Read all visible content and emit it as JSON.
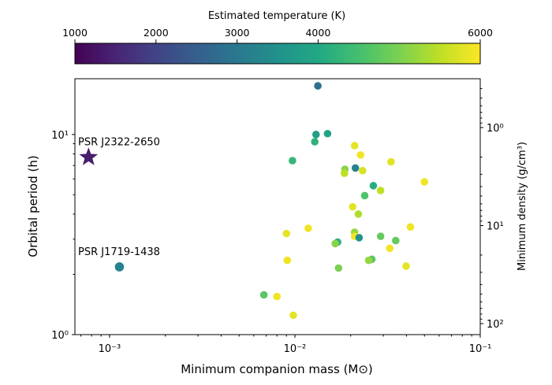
{
  "chart_data": {
    "type": "scatter",
    "xlabel": "Minimum companion mass (M⊙)",
    "ylabel": "Orbital period (h)",
    "y2label": "Minimum density (g/cm³)",
    "x_scale": "log",
    "y_scale": "log",
    "xlim": [
      0.00065,
      0.1
    ],
    "ylim": [
      1,
      19
    ],
    "x_ticks": [
      {
        "value": 0.001,
        "label": "10⁻³"
      },
      {
        "value": 0.01,
        "label": "10⁻²"
      },
      {
        "value": 0.1,
        "label": "10⁻¹"
      }
    ],
    "y_ticks": [
      {
        "value": 1,
        "label": "10⁰"
      },
      {
        "value": 10,
        "label": "10¹"
      }
    ],
    "y2_ticks": [
      {
        "value": 1,
        "label": "10⁰"
      },
      {
        "value": 10,
        "label": "10¹"
      },
      {
        "value": 100,
        "label": "10²"
      }
    ],
    "colorbar": {
      "label": "Estimated temperature (K)",
      "ticks": [
        "1000",
        "2000",
        "3000",
        "4000",
        "6000"
      ],
      "range": [
        1000,
        6000
      ],
      "colormap": "viridis"
    },
    "highlighted": [
      {
        "name": "PSR J2322-2650",
        "x": 0.00077,
        "y": 7.7,
        "marker": "star",
        "temp": 1400
      },
      {
        "name": "PSR J1719-1438",
        "x": 0.00113,
        "y": 2.18,
        "marker": "circle",
        "temp": 3200
      }
    ],
    "points": [
      {
        "x": 0.0133,
        "y": 17.5,
        "temp": 2850
      },
      {
        "x": 0.013,
        "y": 10.0,
        "temp": 3800
      },
      {
        "x": 0.015,
        "y": 10.1,
        "temp": 3900
      },
      {
        "x": 0.0128,
        "y": 9.2,
        "temp": 4200
      },
      {
        "x": 0.021,
        "y": 8.8,
        "temp": 5800
      },
      {
        "x": 0.0226,
        "y": 7.9,
        "temp": 5900
      },
      {
        "x": 0.0097,
        "y": 7.4,
        "temp": 4300
      },
      {
        "x": 0.033,
        "y": 7.3,
        "temp": 5800
      },
      {
        "x": 0.0212,
        "y": 6.8,
        "temp": 3200
      },
      {
        "x": 0.0186,
        "y": 6.7,
        "temp": 5100
      },
      {
        "x": 0.0232,
        "y": 6.6,
        "temp": 5700
      },
      {
        "x": 0.0185,
        "y": 6.4,
        "temp": 5500
      },
      {
        "x": 0.05,
        "y": 5.8,
        "temp": 5900
      },
      {
        "x": 0.0265,
        "y": 5.55,
        "temp": 4100
      },
      {
        "x": 0.029,
        "y": 5.25,
        "temp": 5500
      },
      {
        "x": 0.0238,
        "y": 4.95,
        "temp": 4600
      },
      {
        "x": 0.0205,
        "y": 4.35,
        "temp": 5800
      },
      {
        "x": 0.022,
        "y": 4.0,
        "temp": 5400
      },
      {
        "x": 0.042,
        "y": 3.45,
        "temp": 5900
      },
      {
        "x": 0.0118,
        "y": 3.4,
        "temp": 5900
      },
      {
        "x": 0.009,
        "y": 3.2,
        "temp": 5800
      },
      {
        "x": 0.021,
        "y": 3.25,
        "temp": 5200
      },
      {
        "x": 0.021,
        "y": 3.1,
        "temp": 5900
      },
      {
        "x": 0.0222,
        "y": 3.05,
        "temp": 3500
      },
      {
        "x": 0.029,
        "y": 3.1,
        "temp": 4800
      },
      {
        "x": 0.035,
        "y": 2.95,
        "temp": 4800
      },
      {
        "x": 0.017,
        "y": 2.9,
        "temp": 4200
      },
      {
        "x": 0.0165,
        "y": 2.85,
        "temp": 5100
      },
      {
        "x": 0.0325,
        "y": 2.7,
        "temp": 5900
      },
      {
        "x": 0.0091,
        "y": 2.35,
        "temp": 5900
      },
      {
        "x": 0.026,
        "y": 2.38,
        "temp": 4700
      },
      {
        "x": 0.025,
        "y": 2.35,
        "temp": 5200
      },
      {
        "x": 0.0172,
        "y": 2.15,
        "temp": 5000
      },
      {
        "x": 0.0398,
        "y": 2.2,
        "temp": 5800
      },
      {
        "x": 0.0068,
        "y": 1.58,
        "temp": 4700
      },
      {
        "x": 0.008,
        "y": 1.55,
        "temp": 5900
      },
      {
        "x": 0.0098,
        "y": 1.25,
        "temp": 5800
      }
    ]
  }
}
